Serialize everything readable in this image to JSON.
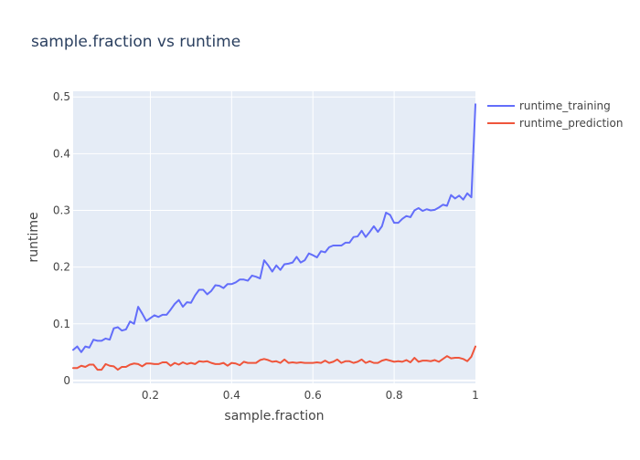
{
  "chart_data": {
    "type": "line",
    "title": "sample.fraction vs runtime",
    "xlabel": "sample.fraction",
    "ylabel": "runtime",
    "xlim": [
      0.01,
      1.0
    ],
    "ylim": [
      -0.005,
      0.51
    ],
    "x_ticks": [
      0.2,
      0.4,
      0.6,
      0.8,
      1.0
    ],
    "x_tick_labels": [
      "0.2",
      "0.4",
      "0.6",
      "0.8",
      "1"
    ],
    "y_ticks": [
      0,
      0.1,
      0.2,
      0.3,
      0.4,
      0.5
    ],
    "y_tick_labels": [
      "0",
      "0.1",
      "0.2",
      "0.3",
      "0.4",
      "0.5"
    ],
    "grid": true,
    "legend_position": "top-right",
    "series": [
      {
        "name": "runtime_training",
        "color": "#636EFA",
        "points": [
          [
            0.01,
            0.054
          ],
          [
            0.02,
            0.06
          ],
          [
            0.03,
            0.05
          ],
          [
            0.04,
            0.06
          ],
          [
            0.05,
            0.058
          ],
          [
            0.06,
            0.072
          ],
          [
            0.07,
            0.07
          ],
          [
            0.08,
            0.07
          ],
          [
            0.09,
            0.074
          ],
          [
            0.1,
            0.072
          ],
          [
            0.11,
            0.092
          ],
          [
            0.12,
            0.094
          ],
          [
            0.13,
            0.088
          ],
          [
            0.14,
            0.09
          ],
          [
            0.15,
            0.104
          ],
          [
            0.16,
            0.1
          ],
          [
            0.17,
            0.13
          ],
          [
            0.18,
            0.118
          ],
          [
            0.19,
            0.105
          ],
          [
            0.2,
            0.11
          ],
          [
            0.21,
            0.115
          ],
          [
            0.22,
            0.112
          ],
          [
            0.23,
            0.116
          ],
          [
            0.24,
            0.116
          ],
          [
            0.25,
            0.125
          ],
          [
            0.26,
            0.135
          ],
          [
            0.27,
            0.142
          ],
          [
            0.28,
            0.13
          ],
          [
            0.29,
            0.138
          ],
          [
            0.3,
            0.137
          ],
          [
            0.31,
            0.15
          ],
          [
            0.32,
            0.16
          ],
          [
            0.33,
            0.16
          ],
          [
            0.34,
            0.152
          ],
          [
            0.35,
            0.158
          ],
          [
            0.36,
            0.168
          ],
          [
            0.37,
            0.167
          ],
          [
            0.38,
            0.163
          ],
          [
            0.39,
            0.17
          ],
          [
            0.4,
            0.17
          ],
          [
            0.41,
            0.173
          ],
          [
            0.42,
            0.178
          ],
          [
            0.43,
            0.178
          ],
          [
            0.44,
            0.176
          ],
          [
            0.45,
            0.185
          ],
          [
            0.46,
            0.183
          ],
          [
            0.47,
            0.18
          ],
          [
            0.48,
            0.212
          ],
          [
            0.49,
            0.203
          ],
          [
            0.5,
            0.192
          ],
          [
            0.51,
            0.203
          ],
          [
            0.52,
            0.195
          ],
          [
            0.53,
            0.205
          ],
          [
            0.54,
            0.206
          ],
          [
            0.55,
            0.208
          ],
          [
            0.56,
            0.218
          ],
          [
            0.57,
            0.208
          ],
          [
            0.58,
            0.212
          ],
          [
            0.59,
            0.224
          ],
          [
            0.6,
            0.221
          ],
          [
            0.61,
            0.217
          ],
          [
            0.62,
            0.228
          ],
          [
            0.63,
            0.226
          ],
          [
            0.64,
            0.235
          ],
          [
            0.65,
            0.238
          ],
          [
            0.66,
            0.238
          ],
          [
            0.67,
            0.238
          ],
          [
            0.68,
            0.243
          ],
          [
            0.69,
            0.243
          ],
          [
            0.7,
            0.253
          ],
          [
            0.71,
            0.254
          ],
          [
            0.72,
            0.264
          ],
          [
            0.73,
            0.253
          ],
          [
            0.74,
            0.262
          ],
          [
            0.75,
            0.272
          ],
          [
            0.76,
            0.262
          ],
          [
            0.77,
            0.272
          ],
          [
            0.78,
            0.296
          ],
          [
            0.79,
            0.292
          ],
          [
            0.8,
            0.278
          ],
          [
            0.81,
            0.278
          ],
          [
            0.82,
            0.285
          ],
          [
            0.83,
            0.29
          ],
          [
            0.84,
            0.288
          ],
          [
            0.85,
            0.3
          ],
          [
            0.86,
            0.304
          ],
          [
            0.87,
            0.299
          ],
          [
            0.88,
            0.302
          ],
          [
            0.89,
            0.3
          ],
          [
            0.9,
            0.301
          ],
          [
            0.91,
            0.305
          ],
          [
            0.92,
            0.31
          ],
          [
            0.93,
            0.308
          ],
          [
            0.94,
            0.327
          ],
          [
            0.95,
            0.321
          ],
          [
            0.96,
            0.326
          ],
          [
            0.97,
            0.319
          ],
          [
            0.98,
            0.33
          ],
          [
            0.99,
            0.323
          ],
          [
            1.0,
            0.487
          ]
        ]
      },
      {
        "name": "runtime_prediction",
        "color": "#EF553B",
        "points": [
          [
            0.01,
            0.022
          ],
          [
            0.02,
            0.022
          ],
          [
            0.03,
            0.026
          ],
          [
            0.04,
            0.024
          ],
          [
            0.05,
            0.028
          ],
          [
            0.06,
            0.028
          ],
          [
            0.07,
            0.019
          ],
          [
            0.08,
            0.019
          ],
          [
            0.09,
            0.029
          ],
          [
            0.1,
            0.026
          ],
          [
            0.11,
            0.025
          ],
          [
            0.12,
            0.019
          ],
          [
            0.13,
            0.024
          ],
          [
            0.14,
            0.024
          ],
          [
            0.15,
            0.028
          ],
          [
            0.16,
            0.03
          ],
          [
            0.17,
            0.029
          ],
          [
            0.18,
            0.025
          ],
          [
            0.19,
            0.03
          ],
          [
            0.2,
            0.03
          ],
          [
            0.21,
            0.029
          ],
          [
            0.22,
            0.029
          ],
          [
            0.23,
            0.032
          ],
          [
            0.24,
            0.032
          ],
          [
            0.25,
            0.026
          ],
          [
            0.26,
            0.031
          ],
          [
            0.27,
            0.028
          ],
          [
            0.28,
            0.032
          ],
          [
            0.29,
            0.029
          ],
          [
            0.3,
            0.031
          ],
          [
            0.31,
            0.029
          ],
          [
            0.32,
            0.034
          ],
          [
            0.33,
            0.033
          ],
          [
            0.34,
            0.034
          ],
          [
            0.35,
            0.031
          ],
          [
            0.36,
            0.029
          ],
          [
            0.37,
            0.029
          ],
          [
            0.38,
            0.031
          ],
          [
            0.39,
            0.026
          ],
          [
            0.4,
            0.031
          ],
          [
            0.41,
            0.03
          ],
          [
            0.42,
            0.027
          ],
          [
            0.43,
            0.033
          ],
          [
            0.44,
            0.031
          ],
          [
            0.45,
            0.031
          ],
          [
            0.46,
            0.031
          ],
          [
            0.47,
            0.036
          ],
          [
            0.48,
            0.038
          ],
          [
            0.49,
            0.036
          ],
          [
            0.5,
            0.033
          ],
          [
            0.51,
            0.034
          ],
          [
            0.52,
            0.031
          ],
          [
            0.53,
            0.037
          ],
          [
            0.54,
            0.031
          ],
          [
            0.55,
            0.032
          ],
          [
            0.56,
            0.031
          ],
          [
            0.57,
            0.032
          ],
          [
            0.58,
            0.031
          ],
          [
            0.59,
            0.031
          ],
          [
            0.6,
            0.031
          ],
          [
            0.61,
            0.032
          ],
          [
            0.62,
            0.031
          ],
          [
            0.63,
            0.035
          ],
          [
            0.64,
            0.031
          ],
          [
            0.65,
            0.033
          ],
          [
            0.66,
            0.037
          ],
          [
            0.67,
            0.031
          ],
          [
            0.68,
            0.034
          ],
          [
            0.69,
            0.034
          ],
          [
            0.7,
            0.031
          ],
          [
            0.71,
            0.033
          ],
          [
            0.72,
            0.037
          ],
          [
            0.73,
            0.031
          ],
          [
            0.74,
            0.034
          ],
          [
            0.75,
            0.031
          ],
          [
            0.76,
            0.031
          ],
          [
            0.77,
            0.035
          ],
          [
            0.78,
            0.037
          ],
          [
            0.79,
            0.035
          ],
          [
            0.8,
            0.033
          ],
          [
            0.81,
            0.034
          ],
          [
            0.82,
            0.033
          ],
          [
            0.83,
            0.036
          ],
          [
            0.84,
            0.032
          ],
          [
            0.85,
            0.04
          ],
          [
            0.86,
            0.033
          ],
          [
            0.87,
            0.035
          ],
          [
            0.88,
            0.035
          ],
          [
            0.89,
            0.034
          ],
          [
            0.9,
            0.036
          ],
          [
            0.91,
            0.033
          ],
          [
            0.92,
            0.038
          ],
          [
            0.93,
            0.043
          ],
          [
            0.94,
            0.039
          ],
          [
            0.95,
            0.04
          ],
          [
            0.96,
            0.04
          ],
          [
            0.97,
            0.038
          ],
          [
            0.98,
            0.034
          ],
          [
            0.99,
            0.042
          ],
          [
            1.0,
            0.06
          ]
        ]
      }
    ]
  },
  "theme": {
    "plot_background": "#E5ECF6",
    "gridline_color": "#FFFFFF",
    "text_color": "#444444",
    "title_color": "#2A3F5F"
  }
}
